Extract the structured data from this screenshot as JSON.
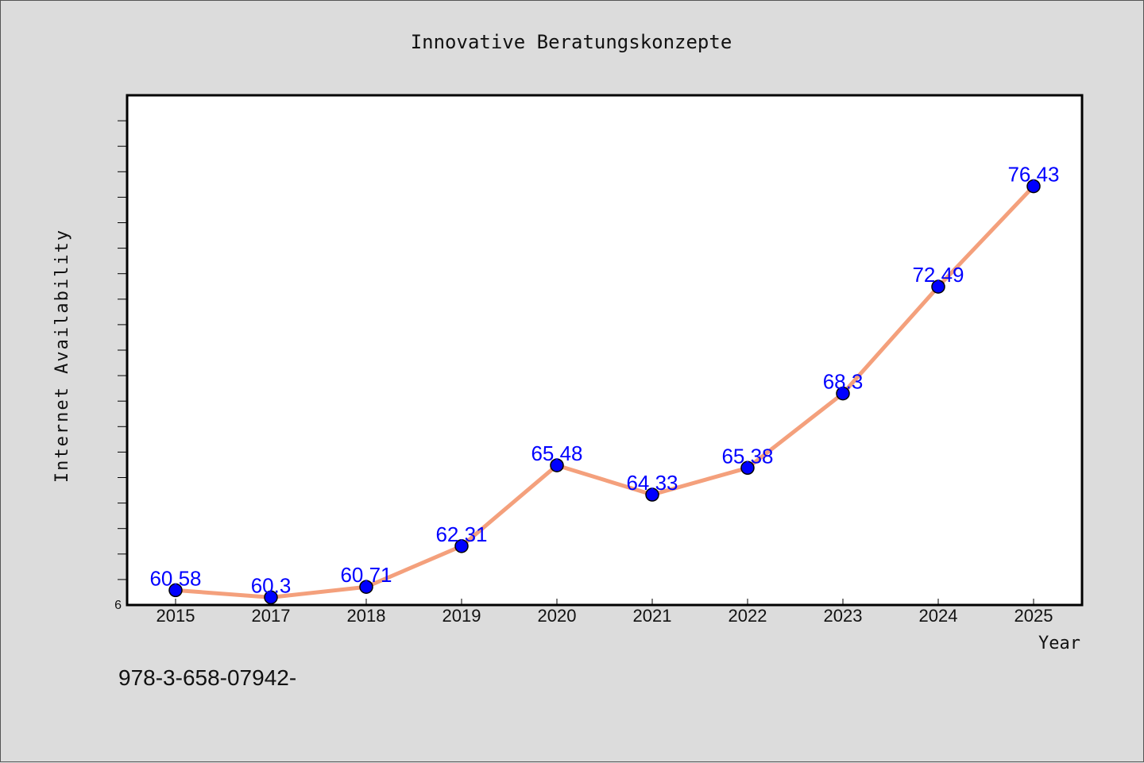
{
  "chart_data": {
    "type": "line",
    "title": "Innovative Beratungskonzepte",
    "xlabel": "Year",
    "ylabel": "Internet Availability",
    "categories": [
      "2015",
      "2017",
      "2018",
      "2019",
      "2020",
      "2021",
      "2022",
      "2023",
      "2024",
      "2025"
    ],
    "series": [
      {
        "values": [
          60.58,
          60.3,
          60.71,
          62.31,
          65.48,
          64.33,
          65.38,
          68.3,
          72.49,
          76.43
        ],
        "data_labels": [
          "60.58",
          "60.3",
          "60.71",
          "62.31",
          "65.48",
          "64.33",
          "65.38",
          "68.3",
          "72.49",
          "76.43"
        ],
        "line_color": "#f4a07c",
        "marker_color": "#0000ff"
      }
    ],
    "ylim": [
      60,
      80
    ],
    "y_tick_labels": [
      "6"
    ],
    "grid": false,
    "legend": "none"
  },
  "footer": {
    "isbn": "978-3-658-07942-"
  }
}
